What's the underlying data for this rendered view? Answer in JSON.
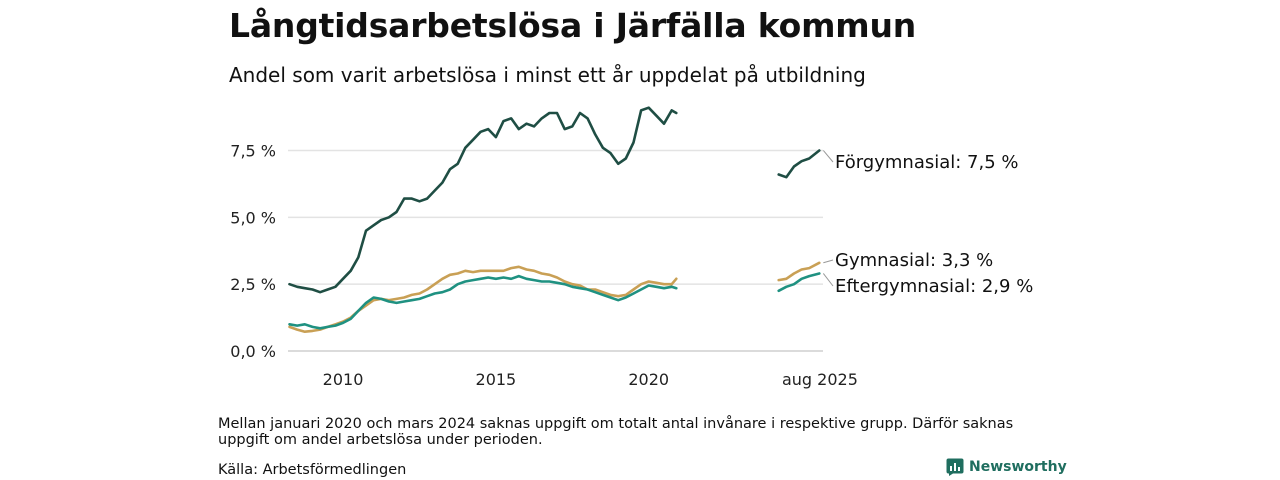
{
  "header": {
    "title": "Långtidsarbetslösa i Järfälla kommun",
    "subtitle": "Andel som varit arbetslösa i minst ett år uppdelat på utbildning"
  },
  "footer": {
    "note": "Mellan januari 2020 och mars 2024 saknas uppgift om totalt antal invånare i respektive grupp. Därför saknas uppgift om andel arbetslösa under perioden.",
    "source": "Källa: Arbetsförmedlingen",
    "brand": "Newsworthy"
  },
  "chart_data": {
    "type": "line",
    "title": "Långtidsarbetslösa i Järfälla kommun",
    "subtitle": "Andel som varit arbetslösa i minst ett år uppdelat på utbildning",
    "xlim": [
      2008.2,
      2025.7
    ],
    "ylim": [
      0,
      9.5
    ],
    "yticks": [
      0,
      2.5,
      5,
      7.5
    ],
    "ytick_labels": [
      "0,0 %",
      "2,5 %",
      "5,0 %",
      "7,5 %"
    ],
    "xticks": [
      2010,
      2015,
      2020,
      2025.6
    ],
    "xtick_labels": [
      "2010",
      "2015",
      "2020",
      "aug 2025"
    ],
    "grid": "horizontal",
    "series": [
      {
        "name": "Förgymnasial",
        "end_label": "Förgymnasial: 7,5 %",
        "color": "#1f4e44",
        "segments": [
          [
            [
              2008.25,
              2.5
            ],
            [
              2008.5,
              2.4
            ],
            [
              2008.75,
              2.35
            ],
            [
              2009.0,
              2.3
            ],
            [
              2009.25,
              2.2
            ],
            [
              2009.5,
              2.3
            ],
            [
              2009.75,
              2.4
            ],
            [
              2010.0,
              2.7
            ],
            [
              2010.25,
              3.0
            ],
            [
              2010.5,
              3.5
            ],
            [
              2010.75,
              4.5
            ],
            [
              2011.0,
              4.7
            ],
            [
              2011.25,
              4.9
            ],
            [
              2011.5,
              5.0
            ],
            [
              2011.75,
              5.2
            ],
            [
              2012.0,
              5.7
            ],
            [
              2012.25,
              5.7
            ],
            [
              2012.5,
              5.6
            ],
            [
              2012.75,
              5.7
            ],
            [
              2013.0,
              6.0
            ],
            [
              2013.25,
              6.3
            ],
            [
              2013.5,
              6.8
            ],
            [
              2013.75,
              7.0
            ],
            [
              2014.0,
              7.6
            ],
            [
              2014.25,
              7.9
            ],
            [
              2014.5,
              8.2
            ],
            [
              2014.75,
              8.3
            ],
            [
              2015.0,
              8.0
            ],
            [
              2015.25,
              8.6
            ],
            [
              2015.5,
              8.7
            ],
            [
              2015.75,
              8.3
            ],
            [
              2016.0,
              8.5
            ],
            [
              2016.25,
              8.4
            ],
            [
              2016.5,
              8.7
            ],
            [
              2016.75,
              8.9
            ],
            [
              2017.0,
              8.9
            ],
            [
              2017.25,
              8.3
            ],
            [
              2017.5,
              8.4
            ],
            [
              2017.75,
              8.9
            ],
            [
              2018.0,
              8.7
            ],
            [
              2018.25,
              8.1
            ],
            [
              2018.5,
              7.6
            ],
            [
              2018.75,
              7.4
            ],
            [
              2019.0,
              7.0
            ],
            [
              2019.25,
              7.2
            ],
            [
              2019.5,
              7.8
            ],
            [
              2019.75,
              9.0
            ],
            [
              2020.0,
              9.1
            ],
            [
              2020.25,
              8.8
            ],
            [
              2020.5,
              8.5
            ],
            [
              2020.75,
              9.0
            ],
            [
              2020.9,
              8.9
            ]
          ],
          [
            [
              2024.25,
              6.6
            ],
            [
              2024.5,
              6.5
            ],
            [
              2024.75,
              6.9
            ],
            [
              2025.0,
              7.1
            ],
            [
              2025.25,
              7.2
            ],
            [
              2025.58,
              7.5
            ]
          ]
        ]
      },
      {
        "name": "Gymnasial",
        "end_label": "Gymnasial: 3,3 %",
        "color": "#c9a055",
        "segments": [
          [
            [
              2008.25,
              0.9
            ],
            [
              2008.5,
              0.8
            ],
            [
              2008.75,
              0.72
            ],
            [
              2009.0,
              0.75
            ],
            [
              2009.25,
              0.8
            ],
            [
              2009.5,
              0.9
            ],
            [
              2009.75,
              1.0
            ],
            [
              2010.0,
              1.1
            ],
            [
              2010.25,
              1.25
            ],
            [
              2010.5,
              1.5
            ],
            [
              2010.75,
              1.7
            ],
            [
              2011.0,
              1.9
            ],
            [
              2011.25,
              1.95
            ],
            [
              2011.5,
              1.9
            ],
            [
              2011.75,
              1.95
            ],
            [
              2012.0,
              2.0
            ],
            [
              2012.25,
              2.1
            ],
            [
              2012.5,
              2.15
            ],
            [
              2012.75,
              2.3
            ],
            [
              2013.0,
              2.5
            ],
            [
              2013.25,
              2.7
            ],
            [
              2013.5,
              2.85
            ],
            [
              2013.75,
              2.9
            ],
            [
              2014.0,
              3.0
            ],
            [
              2014.25,
              2.95
            ],
            [
              2014.5,
              3.0
            ],
            [
              2014.75,
              3.0
            ],
            [
              2015.0,
              3.0
            ],
            [
              2015.25,
              3.0
            ],
            [
              2015.5,
              3.1
            ],
            [
              2015.75,
              3.15
            ],
            [
              2016.0,
              3.05
            ],
            [
              2016.25,
              3.0
            ],
            [
              2016.5,
              2.9
            ],
            [
              2016.75,
              2.85
            ],
            [
              2017.0,
              2.75
            ],
            [
              2017.25,
              2.6
            ],
            [
              2017.5,
              2.5
            ],
            [
              2017.75,
              2.45
            ],
            [
              2018.0,
              2.3
            ],
            [
              2018.25,
              2.3
            ],
            [
              2018.5,
              2.2
            ],
            [
              2018.75,
              2.1
            ],
            [
              2019.0,
              2.05
            ],
            [
              2019.25,
              2.1
            ],
            [
              2019.5,
              2.3
            ],
            [
              2019.75,
              2.5
            ],
            [
              2020.0,
              2.6
            ],
            [
              2020.25,
              2.55
            ],
            [
              2020.5,
              2.5
            ],
            [
              2020.75,
              2.5
            ],
            [
              2020.9,
              2.7
            ]
          ],
          [
            [
              2024.25,
              2.65
            ],
            [
              2024.5,
              2.7
            ],
            [
              2024.75,
              2.9
            ],
            [
              2025.0,
              3.05
            ],
            [
              2025.25,
              3.1
            ],
            [
              2025.58,
              3.3
            ]
          ]
        ]
      },
      {
        "name": "Eftergymnasial",
        "end_label": "Eftergymnasial: 2,9 %",
        "color": "#1f9181",
        "segments": [
          [
            [
              2008.25,
              1.0
            ],
            [
              2008.5,
              0.95
            ],
            [
              2008.75,
              1.0
            ],
            [
              2009.0,
              0.9
            ],
            [
              2009.25,
              0.85
            ],
            [
              2009.5,
              0.9
            ],
            [
              2009.75,
              0.95
            ],
            [
              2010.0,
              1.05
            ],
            [
              2010.25,
              1.2
            ],
            [
              2010.5,
              1.5
            ],
            [
              2010.75,
              1.8
            ],
            [
              2011.0,
              2.0
            ],
            [
              2011.25,
              1.95
            ],
            [
              2011.5,
              1.85
            ],
            [
              2011.75,
              1.8
            ],
            [
              2012.0,
              1.85
            ],
            [
              2012.25,
              1.9
            ],
            [
              2012.5,
              1.95
            ],
            [
              2012.75,
              2.05
            ],
            [
              2013.0,
              2.15
            ],
            [
              2013.25,
              2.2
            ],
            [
              2013.5,
              2.3
            ],
            [
              2013.75,
              2.5
            ],
            [
              2014.0,
              2.6
            ],
            [
              2014.25,
              2.65
            ],
            [
              2014.5,
              2.7
            ],
            [
              2014.75,
              2.75
            ],
            [
              2015.0,
              2.7
            ],
            [
              2015.25,
              2.75
            ],
            [
              2015.5,
              2.7
            ],
            [
              2015.75,
              2.8
            ],
            [
              2016.0,
              2.7
            ],
            [
              2016.25,
              2.65
            ],
            [
              2016.5,
              2.6
            ],
            [
              2016.75,
              2.6
            ],
            [
              2017.0,
              2.55
            ],
            [
              2017.25,
              2.5
            ],
            [
              2017.5,
              2.4
            ],
            [
              2017.75,
              2.35
            ],
            [
              2018.0,
              2.3
            ],
            [
              2018.25,
              2.2
            ],
            [
              2018.5,
              2.1
            ],
            [
              2018.75,
              2.0
            ],
            [
              2019.0,
              1.9
            ],
            [
              2019.25,
              2.0
            ],
            [
              2019.5,
              2.15
            ],
            [
              2019.75,
              2.3
            ],
            [
              2020.0,
              2.45
            ],
            [
              2020.25,
              2.4
            ],
            [
              2020.5,
              2.35
            ],
            [
              2020.75,
              2.4
            ],
            [
              2020.9,
              2.35
            ]
          ],
          [
            [
              2024.25,
              2.25
            ],
            [
              2024.5,
              2.4
            ],
            [
              2024.75,
              2.5
            ],
            [
              2025.0,
              2.7
            ],
            [
              2025.25,
              2.8
            ],
            [
              2025.58,
              2.9
            ]
          ]
        ]
      }
    ]
  }
}
